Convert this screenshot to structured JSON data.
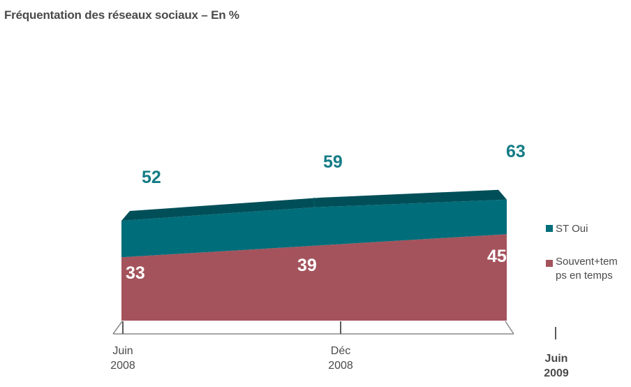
{
  "title": "Fréquentation des réseaux sociaux – En %",
  "colors": {
    "st_oui": "#006d7a",
    "st_oui_top": "#004f58",
    "souvent": "#a4535c",
    "label_teal": "#137b86",
    "text_grey": "#4a4a4a"
  },
  "chart_data": {
    "type": "area",
    "title": "Fréquentation des réseaux sociaux – En %",
    "categories": [
      "Juin\n2008",
      "Déc\n2008",
      "Juin\n2009"
    ],
    "series": [
      {
        "name": "ST Oui",
        "values": [
          52,
          59,
          63
        ]
      },
      {
        "name": "Souvent+temps en temps",
        "values": [
          33,
          39,
          45
        ]
      }
    ],
    "legend": "right"
  },
  "legend": {
    "st_oui": "ST Oui",
    "souvent_line1": "Souvent+tem",
    "souvent_line2": "ps en temps"
  },
  "xaxis": {
    "c0_line1": "Juin",
    "c0_line2": "2008",
    "c1_line1": "Déc",
    "c1_line2": "2008",
    "c2_line1": "Juin",
    "c2_line2": "2009"
  }
}
